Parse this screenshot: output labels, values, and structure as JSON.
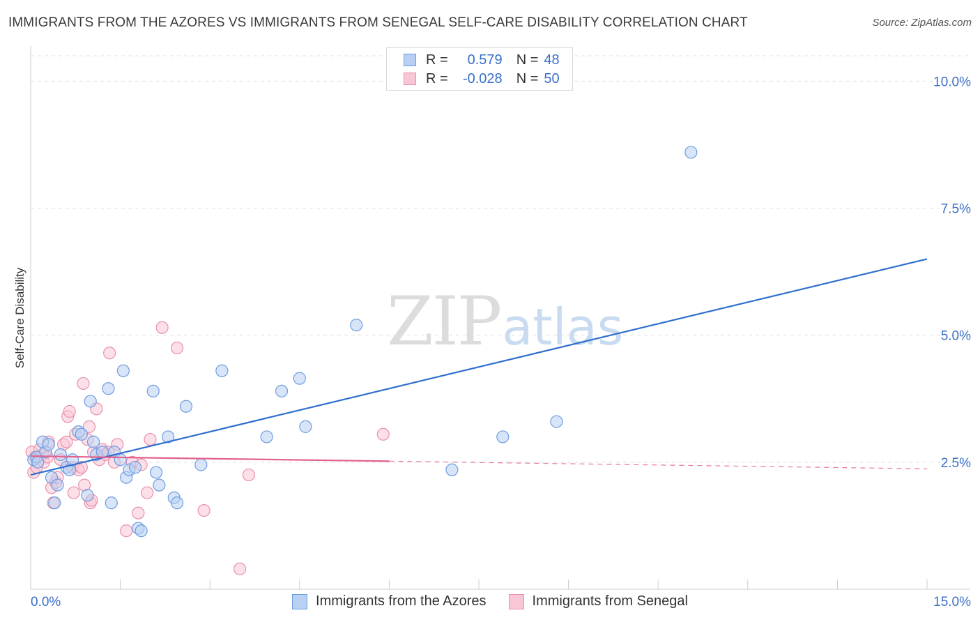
{
  "header": {
    "title": "IMMIGRANTS FROM THE AZORES VS IMMIGRANTS FROM SENEGAL SELF-CARE DISABILITY CORRELATION CHART",
    "source": "Source: ZipAtlas.com"
  },
  "watermark": {
    "zip": "ZIP",
    "atlas": "atlas"
  },
  "legend": {
    "series1": {
      "r_label": "R =",
      "r_value": "0.579",
      "n_label": "N =",
      "n_value": "48"
    },
    "series2": {
      "r_label": "R =",
      "r_value": "-0.028",
      "n_label": "N =",
      "n_value": "50"
    }
  },
  "bottom_legend": {
    "series1": "Immigrants from the Azores",
    "series2": "Immigrants from Senegal"
  },
  "colors": {
    "azores_fill": "#b8d0f2",
    "azores_stroke": "#6d9de0",
    "azores_line": "#2f6fce",
    "senegal_fill": "#f9c6d6",
    "senegal_stroke": "#ea8fab",
    "senegal_line": "#e2628d",
    "tick_label": "#3a6fc9",
    "grid": "#e0e0e0"
  },
  "chart_data": {
    "type": "scatter",
    "title": "IMMIGRANTS FROM THE AZORES VS IMMIGRANTS FROM SENEGAL SELF-CARE DISABILITY CORRELATION CHART",
    "xlabel": "",
    "ylabel": "Self-Care Disability",
    "xlim": [
      0,
      15
    ],
    "ylim": [
      0,
      10.5
    ],
    "x_tick_labels": [
      "0.0%",
      "15.0%"
    ],
    "y_ticks": [
      2.5,
      5.0,
      7.5,
      10.0
    ],
    "y_tick_labels": [
      "2.5%",
      "5.0%",
      "7.5%",
      "10.0%"
    ],
    "series": [
      {
        "name": "Immigrants from the Azores",
        "r": 0.579,
        "n": 48,
        "trend": {
          "x": [
            0,
            15
          ],
          "y": [
            2.25,
            6.5
          ],
          "dashed_from": null
        },
        "points": [
          [
            0.05,
            2.55
          ],
          [
            0.1,
            2.6
          ],
          [
            0.12,
            2.5
          ],
          [
            0.2,
            2.9
          ],
          [
            0.25,
            2.7
          ],
          [
            0.3,
            2.85
          ],
          [
            0.35,
            2.2
          ],
          [
            0.4,
            1.7
          ],
          [
            0.45,
            2.05
          ],
          [
            0.5,
            2.65
          ],
          [
            0.6,
            2.4
          ],
          [
            0.65,
            2.35
          ],
          [
            0.7,
            2.55
          ],
          [
            0.8,
            3.1
          ],
          [
            0.85,
            3.05
          ],
          [
            0.95,
            1.85
          ],
          [
            1.0,
            3.7
          ],
          [
            1.05,
            2.9
          ],
          [
            1.1,
            2.65
          ],
          [
            1.2,
            2.7
          ],
          [
            1.3,
            3.95
          ],
          [
            1.35,
            1.7
          ],
          [
            1.4,
            2.7
          ],
          [
            1.5,
            2.55
          ],
          [
            1.55,
            4.3
          ],
          [
            1.6,
            2.2
          ],
          [
            1.65,
            2.35
          ],
          [
            1.75,
            2.4
          ],
          [
            1.8,
            1.2
          ],
          [
            1.85,
            1.15
          ],
          [
            2.05,
            3.9
          ],
          [
            2.1,
            2.3
          ],
          [
            2.15,
            2.05
          ],
          [
            2.3,
            3.0
          ],
          [
            2.4,
            1.8
          ],
          [
            2.45,
            1.7
          ],
          [
            2.6,
            3.6
          ],
          [
            2.85,
            2.45
          ],
          [
            3.2,
            4.3
          ],
          [
            3.95,
            3.0
          ],
          [
            4.2,
            3.9
          ],
          [
            4.5,
            4.15
          ],
          [
            4.6,
            3.2
          ],
          [
            5.45,
            5.2
          ],
          [
            7.05,
            2.35
          ],
          [
            7.9,
            3.0
          ],
          [
            8.8,
            3.3
          ],
          [
            11.05,
            8.6
          ]
        ]
      },
      {
        "name": "Immigrants from Senegal",
        "r": -0.028,
        "n": 50,
        "trend": {
          "x": [
            0,
            15
          ],
          "y": [
            2.62,
            2.37
          ],
          "dashed_from": 6.0
        },
        "points": [
          [
            0.02,
            2.7
          ],
          [
            0.05,
            2.3
          ],
          [
            0.08,
            2.6
          ],
          [
            0.1,
            2.4
          ],
          [
            0.15,
            2.75
          ],
          [
            0.2,
            2.65
          ],
          [
            0.22,
            2.5
          ],
          [
            0.28,
            2.6
          ],
          [
            0.3,
            2.9
          ],
          [
            0.35,
            2.0
          ],
          [
            0.38,
            1.7
          ],
          [
            0.42,
            2.1
          ],
          [
            0.45,
            2.2
          ],
          [
            0.5,
            2.55
          ],
          [
            0.55,
            2.85
          ],
          [
            0.6,
            2.9
          ],
          [
            0.62,
            3.4
          ],
          [
            0.65,
            3.5
          ],
          [
            0.7,
            2.4
          ],
          [
            0.72,
            1.9
          ],
          [
            0.75,
            3.05
          ],
          [
            0.8,
            2.35
          ],
          [
            0.85,
            2.4
          ],
          [
            0.88,
            4.05
          ],
          [
            0.9,
            2.05
          ],
          [
            0.95,
            2.95
          ],
          [
            0.98,
            3.2
          ],
          [
            1.0,
            1.7
          ],
          [
            1.02,
            1.75
          ],
          [
            1.05,
            2.7
          ],
          [
            1.1,
            3.55
          ],
          [
            1.15,
            2.55
          ],
          [
            1.2,
            2.75
          ],
          [
            1.25,
            2.65
          ],
          [
            1.3,
            2.7
          ],
          [
            1.32,
            4.65
          ],
          [
            1.4,
            2.5
          ],
          [
            1.45,
            2.85
          ],
          [
            1.6,
            1.15
          ],
          [
            1.7,
            2.5
          ],
          [
            1.8,
            1.5
          ],
          [
            1.85,
            2.45
          ],
          [
            1.95,
            1.9
          ],
          [
            2.0,
            2.95
          ],
          [
            2.2,
            5.15
          ],
          [
            2.45,
            4.75
          ],
          [
            2.9,
            1.55
          ],
          [
            3.5,
            0.4
          ],
          [
            3.65,
            2.25
          ],
          [
            5.9,
            3.05
          ]
        ]
      }
    ]
  }
}
